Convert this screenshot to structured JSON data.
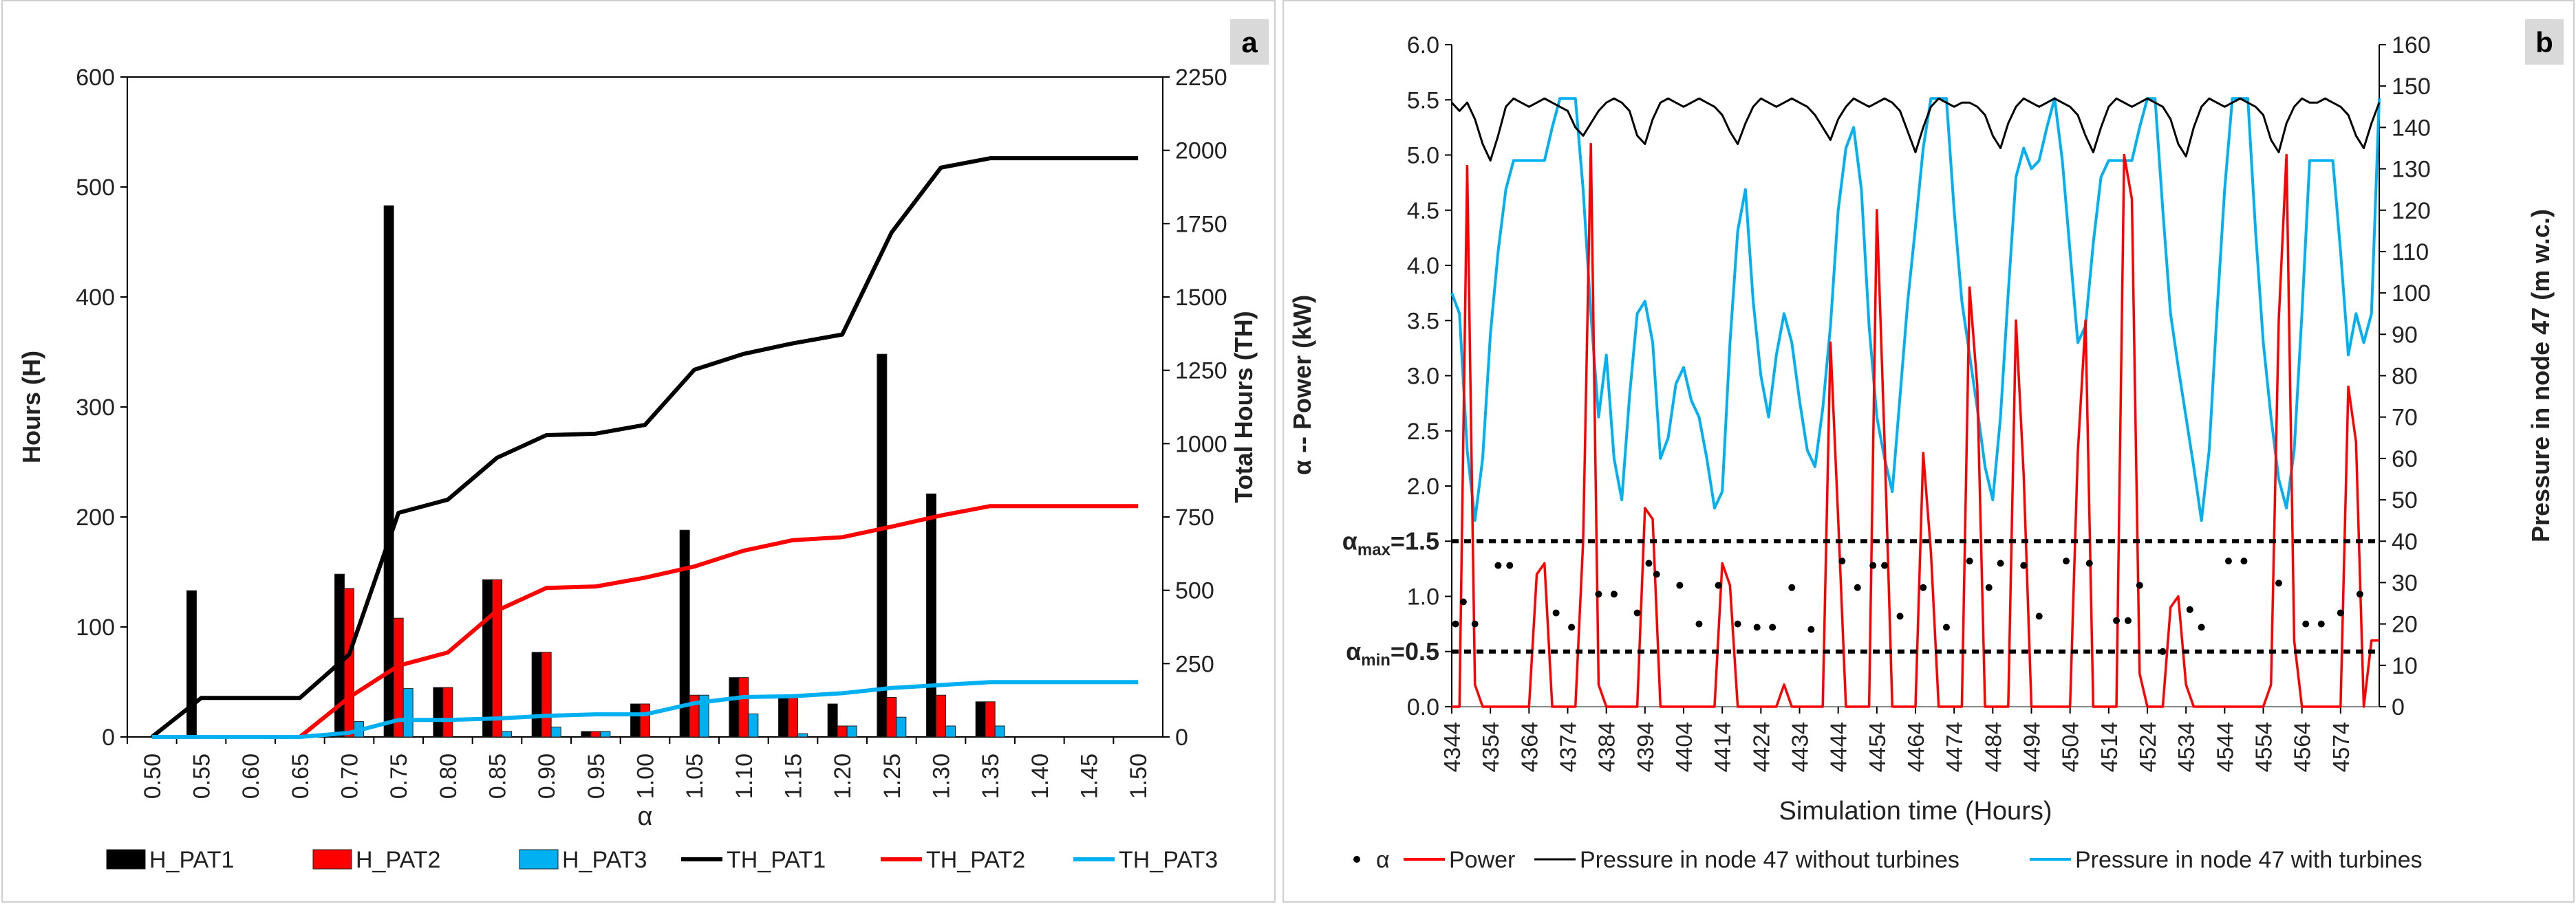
{
  "colors": {
    "black": "#000000",
    "red": "#ff0000",
    "blue": "#00b0f0",
    "lightblue": "#00b0f0",
    "grid": "#bfbfbf",
    "badge": "#d9d9d9"
  },
  "chart_data": [
    {
      "panel": "a",
      "type": "bar+line",
      "xlabel": "α",
      "ylabel_left": "Hours (H)",
      "ylabel_right": "Total Hours (TH)",
      "ylim_left": [
        0,
        600
      ],
      "ylim_right": [
        0,
        2250
      ],
      "yticks_left": [
        "0",
        "100",
        "200",
        "300",
        "400",
        "500",
        "600"
      ],
      "yticks_right": [
        "0",
        "250",
        "500",
        "750",
        "1000",
        "1250",
        "1500",
        "1750",
        "2000",
        "2250"
      ],
      "categories": [
        "0.50",
        "0.55",
        "0.60",
        "0.65",
        "0.70",
        "0.75",
        "0.80",
        "0.85",
        "0.90",
        "0.95",
        "1.00",
        "1.05",
        "1.10",
        "1.15",
        "1.20",
        "1.25",
        "1.30",
        "1.35",
        "1.40",
        "1.45",
        "1.50"
      ],
      "bar_series": [
        {
          "name": "H_PAT1",
          "values": [
            0,
            133,
            0,
            0,
            148,
            483,
            45,
            143,
            77,
            5,
            30,
            188,
            54,
            36,
            30,
            348,
            221,
            32,
            0,
            0,
            0
          ]
        },
        {
          "name": "H_PAT2",
          "values": [
            0,
            0,
            0,
            0,
            135,
            108,
            45,
            143,
            77,
            5,
            30,
            38,
            54,
            36,
            10,
            36,
            38,
            32,
            0,
            0,
            0
          ]
        },
        {
          "name": "H_PAT3",
          "values": [
            0,
            0,
            0,
            0,
            14,
            44,
            0,
            5,
            9,
            5,
            0,
            38,
            21,
            3,
            10,
            18,
            10,
            10,
            0,
            0,
            0
          ]
        }
      ],
      "line_series": [
        {
          "name": "TH_PAT1",
          "values": [
            0,
            133,
            133,
            133,
            281,
            764,
            809,
            952,
            1029,
            1034,
            1064,
            1252,
            1306,
            1342,
            1372,
            1720,
            1941,
            1973,
            1973,
            1973,
            1973
          ]
        },
        {
          "name": "TH_PAT2",
          "values": [
            0,
            0,
            0,
            0,
            135,
            243,
            288,
            431,
            508,
            513,
            543,
            581,
            635,
            671,
            681,
            717,
            755,
            787,
            787,
            787,
            787
          ]
        },
        {
          "name": "TH_PAT3",
          "values": [
            0,
            0,
            0,
            0,
            14,
            58,
            58,
            63,
            72,
            77,
            77,
            115,
            136,
            139,
            149,
            167,
            177,
            187,
            187,
            187,
            187
          ]
        }
      ],
      "legend": [
        "H_PAT1",
        "H_PAT2",
        "H_PAT3",
        "TH_PAT1",
        "TH_PAT2",
        "TH_PAT3"
      ]
    },
    {
      "panel": "b",
      "type": "line",
      "xlabel": "Simulation time (Hours)",
      "ylabel_left": "α  --  Power (kW)",
      "ylabel_right": "Pressure in node 47 (m w.c.)",
      "ylim_left": [
        0,
        6.0
      ],
      "ylim_right": [
        0,
        160
      ],
      "xlim": [
        4344,
        4584
      ],
      "yticks_left": [
        "0.0",
        "0.5",
        "1.0",
        "1.5",
        "2.0",
        "2.5",
        "3.0",
        "3.5",
        "4.0",
        "4.5",
        "5.0",
        "5.5",
        "6.0"
      ],
      "yticks_right": [
        "0",
        "10",
        "20",
        "30",
        "40",
        "50",
        "60",
        "70",
        "80",
        "90",
        "100",
        "110",
        "120",
        "130",
        "140",
        "150",
        "160"
      ],
      "xticks": [
        "4344",
        "4354",
        "4364",
        "4374",
        "4384",
        "4394",
        "4404",
        "4414",
        "4424",
        "4434",
        "4444",
        "4454",
        "4464",
        "4474",
        "4484",
        "4494",
        "4504",
        "4514",
        "4524",
        "4534",
        "4544",
        "4554",
        "4564",
        "4574"
      ],
      "alpha_max": 1.5,
      "alpha_min": 0.5,
      "alpha_max_label": "α",
      "alpha_max_sub": "max",
      "alpha_max_eq": "=1.5",
      "alpha_min_label": "α",
      "alpha_min_sub": "min",
      "alpha_min_eq": "=0.5",
      "pressure_without": [
        146,
        144,
        146,
        142,
        136,
        132,
        138,
        145,
        147,
        146,
        145,
        146,
        147,
        146,
        145,
        144,
        140,
        138,
        141,
        144,
        146,
        147,
        146,
        144,
        138,
        136,
        142,
        146,
        147,
        146,
        145,
        146,
        147,
        146,
        145,
        143,
        139,
        136,
        141,
        145,
        147,
        146,
        145,
        146,
        147,
        146,
        145,
        143,
        140,
        137,
        142,
        145,
        147,
        146,
        145,
        146,
        147,
        146,
        144,
        139,
        134,
        140,
        145,
        147,
        146,
        145,
        146,
        146,
        145,
        143,
        138,
        135,
        141,
        145,
        147,
        146,
        145,
        146,
        147,
        146,
        145,
        143,
        138,
        134,
        140,
        145,
        147,
        146,
        145,
        146,
        147,
        146,
        145,
        142,
        136,
        133,
        140,
        145,
        147,
        146,
        145,
        146,
        147,
        146,
        145,
        143,
        137,
        134,
        141,
        145,
        147,
        146,
        146,
        147,
        146,
        145,
        143,
        138,
        135,
        141,
        146
      ],
      "pressure_with": [
        100,
        95,
        62,
        45,
        60,
        90,
        110,
        125,
        132,
        132,
        132,
        132,
        132,
        140,
        147,
        147,
        147,
        125,
        95,
        70,
        85,
        60,
        50,
        75,
        95,
        98,
        88,
        60,
        65,
        78,
        82,
        74,
        70,
        60,
        48,
        52,
        88,
        115,
        125,
        98,
        80,
        70,
        85,
        95,
        88,
        74,
        62,
        58,
        72,
        92,
        120,
        135,
        140,
        125,
        92,
        70,
        60,
        52,
        75,
        98,
        116,
        135,
        147,
        147,
        147,
        120,
        98,
        85,
        72,
        58,
        50,
        70,
        100,
        128,
        135,
        130,
        132,
        140,
        147,
        132,
        110,
        88,
        92,
        112,
        128,
        132,
        132,
        132,
        132,
        140,
        147,
        147,
        120,
        95,
        82,
        70,
        58,
        45,
        62,
        95,
        125,
        147,
        147,
        147,
        115,
        88,
        70,
        55,
        48,
        62,
        95,
        132,
        132,
        132,
        132,
        110,
        85,
        95,
        88,
        95,
        147
      ],
      "power": [
        0,
        0,
        4.9,
        0.2,
        0,
        0,
        0,
        0,
        0,
        0,
        0,
        1.2,
        1.3,
        0,
        0,
        0,
        0,
        1.5,
        5.1,
        0.2,
        0,
        0,
        0,
        0,
        0,
        1.8,
        1.7,
        0,
        0,
        0,
        0,
        0,
        0,
        0,
        0,
        1.3,
        1.1,
        0,
        0,
        0,
        0,
        0,
        0,
        0.2,
        0,
        0,
        0,
        0,
        0,
        3.3,
        1.7,
        0,
        0,
        0,
        0,
        4.5,
        2.4,
        0,
        0,
        0,
        0,
        2.3,
        1.4,
        0,
        0,
        0,
        0,
        3.8,
        2.9,
        0,
        0,
        0,
        0,
        3.5,
        2.1,
        0,
        0,
        0,
        0,
        0,
        0,
        2.3,
        3.5,
        0,
        0,
        0,
        0,
        5.0,
        4.6,
        0.3,
        0,
        0,
        0,
        0.9,
        1.0,
        0.2,
        0,
        0,
        0,
        0,
        0,
        0,
        0,
        0,
        0,
        0,
        0.2,
        3.5,
        5.0,
        0.6,
        0,
        0,
        0,
        0,
        0,
        0,
        2.9,
        2.4,
        0,
        0.6,
        0.6
      ],
      "alpha_points": [
        [
          4345,
          0.75
        ],
        [
          4347,
          0.95
        ],
        [
          4350,
          0.75
        ],
        [
          4356,
          1.28
        ],
        [
          4359,
          1.28
        ],
        [
          4371,
          0.85
        ],
        [
          4375,
          0.72
        ],
        [
          4382,
          1.02
        ],
        [
          4386,
          1.02
        ],
        [
          4392,
          0.85
        ],
        [
          4395,
          1.3
        ],
        [
          4397,
          1.2
        ],
        [
          4403,
          1.1
        ],
        [
          4408,
          0.75
        ],
        [
          4413,
          1.1
        ],
        [
          4418,
          0.75
        ],
        [
          4423,
          0.72
        ],
        [
          4427,
          0.72
        ],
        [
          4432,
          1.08
        ],
        [
          4437,
          0.7
        ],
        [
          4445,
          1.32
        ],
        [
          4449,
          1.08
        ],
        [
          4453,
          1.28
        ],
        [
          4456,
          1.28
        ],
        [
          4460,
          0.82
        ],
        [
          4466,
          1.08
        ],
        [
          4472,
          0.72
        ],
        [
          4478,
          1.32
        ],
        [
          4483,
          1.08
        ],
        [
          4486,
          1.3
        ],
        [
          4492,
          1.28
        ],
        [
          4496,
          0.82
        ],
        [
          4503,
          1.32
        ],
        [
          4509,
          1.3
        ],
        [
          4516,
          0.78
        ],
        [
          4519,
          0.78
        ],
        [
          4522,
          1.1
        ],
        [
          4528,
          0.5
        ],
        [
          4535,
          0.88
        ],
        [
          4538,
          0.72
        ],
        [
          4545,
          1.32
        ],
        [
          4549,
          1.32
        ],
        [
          4558,
          1.12
        ],
        [
          4565,
          0.75
        ],
        [
          4569,
          0.75
        ],
        [
          4574,
          0.85
        ],
        [
          4579,
          1.02
        ]
      ],
      "legend": [
        "α",
        "Power",
        "Pressure in node 47 without turbines",
        "Pressure in node 47 with turbines"
      ]
    }
  ],
  "panels": {
    "a": {
      "badge": "a"
    },
    "b": {
      "badge": "b"
    }
  }
}
